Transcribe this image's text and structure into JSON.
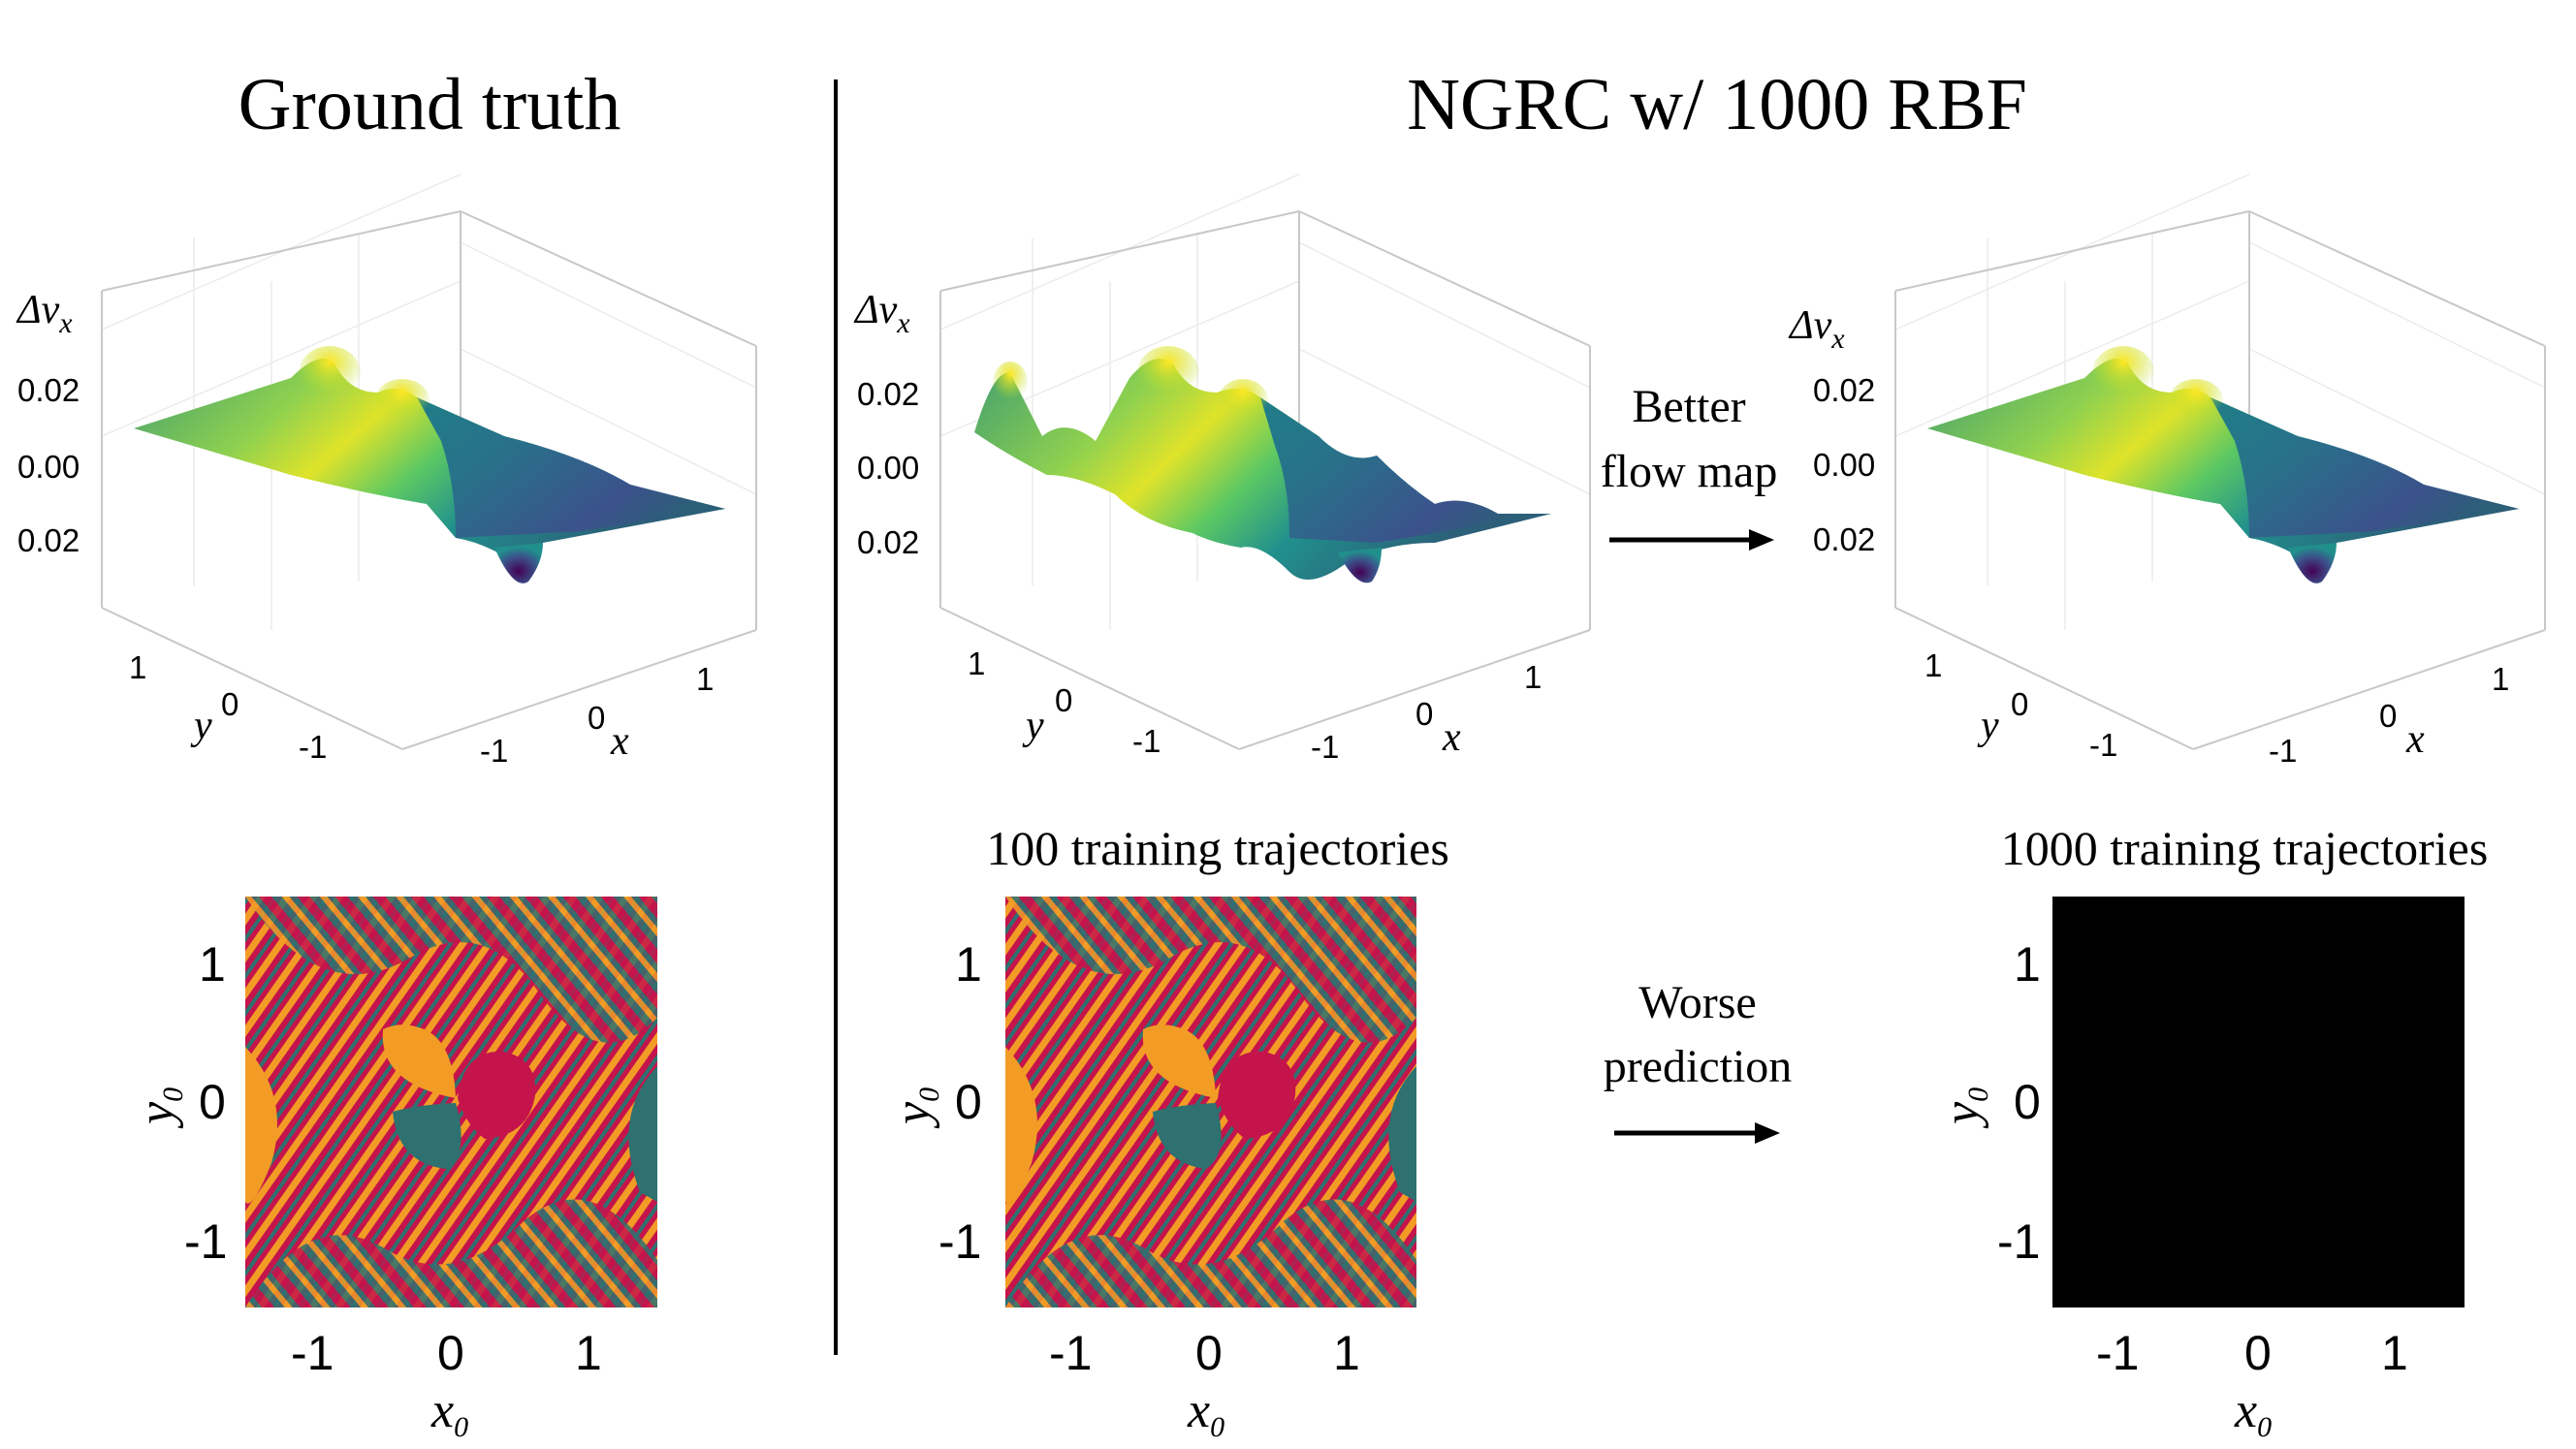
{
  "titles": {
    "left": "Ground truth",
    "right": "NGRC w/ 1000 RBF"
  },
  "surface_panels": [
    {
      "id": "ground-truth",
      "z_label": "Δv",
      "z_sub": "x",
      "z_ticks": [
        "0.02",
        "0.00",
        "0.02"
      ],
      "y_label": "y",
      "y_ticks": [
        "1",
        "0",
        "-1"
      ],
      "x_label": "x",
      "x_ticks": [
        "-1",
        "0",
        "1"
      ],
      "surface": "smooth"
    },
    {
      "id": "ngrc-100",
      "z_label": "Δv",
      "z_sub": "x",
      "z_ticks": [
        "0.02",
        "0.00",
        "0.02"
      ],
      "y_label": "y",
      "y_ticks": [
        "1",
        "0",
        "-1"
      ],
      "x_label": "x",
      "x_ticks": [
        "-1",
        "0",
        "1"
      ],
      "surface": "wavy"
    },
    {
      "id": "ngrc-1000",
      "z_label": "Δv",
      "z_sub": "x",
      "z_ticks": [
        "0.02",
        "0.00",
        "0.02"
      ],
      "y_label": "y",
      "y_ticks": [
        "1",
        "0",
        "-1"
      ],
      "x_label": "x",
      "x_ticks": [
        "-1",
        "0",
        "1"
      ],
      "surface": "smooth"
    }
  ],
  "arrows": {
    "top_line1": "Better",
    "top_line2": "flow map",
    "bottom_line1": "Worse",
    "bottom_line2": "prediction"
  },
  "captions": {
    "middle": "100 training trajectories",
    "right": "1000 training trajectories"
  },
  "basin_panels": [
    {
      "id": "basin-ground-truth",
      "x_label": "x",
      "x_sub": "0",
      "y_label": "y",
      "y_sub": "0",
      "x_ticks": [
        "-1",
        "0",
        "1"
      ],
      "y_ticks": [
        "1",
        "0",
        "-1"
      ],
      "fill": "fractal"
    },
    {
      "id": "basin-ngrc-100",
      "x_label": "x",
      "x_sub": "0",
      "y_label": "y",
      "y_sub": "0",
      "x_ticks": [
        "-1",
        "0",
        "1"
      ],
      "y_ticks": [
        "1",
        "0",
        "-1"
      ],
      "fill": "fractal"
    },
    {
      "id": "basin-ngrc-1000",
      "x_label": "x",
      "x_sub": "0",
      "y_label": "y",
      "y_sub": "0",
      "x_ticks": [
        "-1",
        "0",
        "1"
      ],
      "y_ticks": [
        "1",
        "0",
        "-1"
      ],
      "fill": "solid"
    }
  ],
  "colors": {
    "basin_red": "#c4144b",
    "basin_orange": "#f29c26",
    "basin_teal": "#2e7170",
    "viridis_yellow": "#dfe32a",
    "viridis_green": "#5cc863",
    "viridis_teal": "#21908d",
    "viridis_blue": "#3b528b",
    "viridis_purple": "#440154",
    "black": "#000000"
  }
}
